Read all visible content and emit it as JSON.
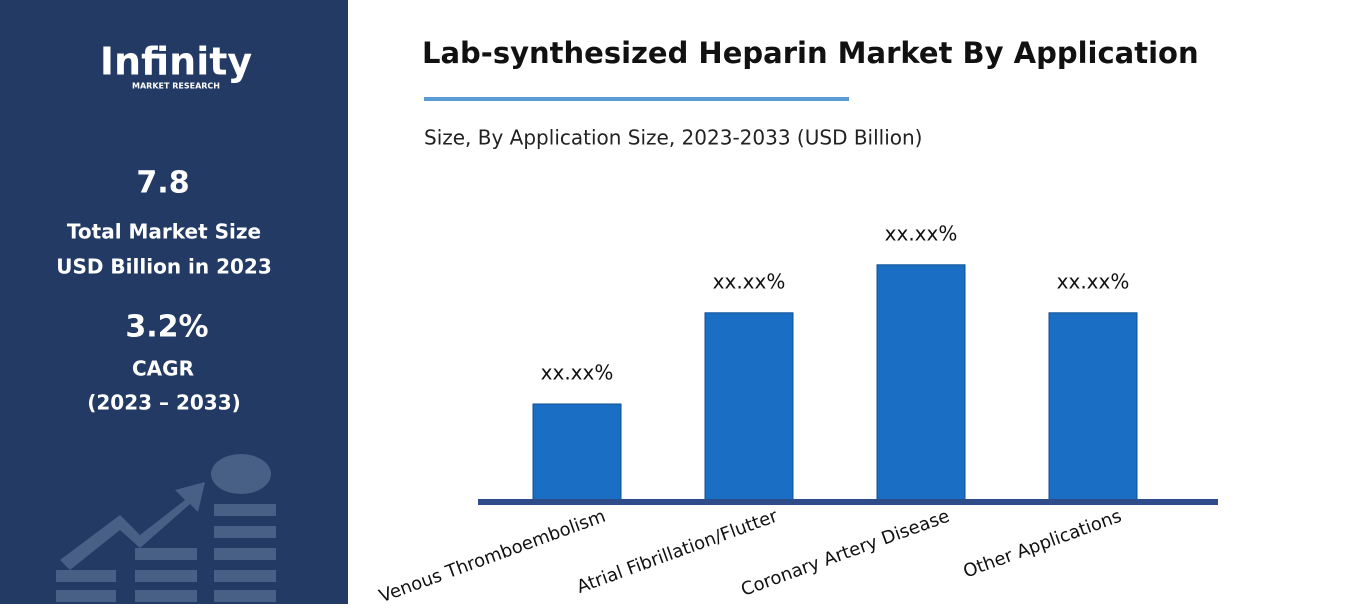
{
  "sidebar": {
    "logo": "Infinity",
    "logo_tagline": "MARKET RESEARCH",
    "market_size": "7.8",
    "market_size_label": [
      "Total Market Size",
      "USD Billion in 2023"
    ],
    "cagr": "3.2%",
    "cagr_label": [
      "CAGR",
      "(2023 – 2033)"
    ]
  },
  "chart_data": {
    "type": "bar",
    "title": "Lab-synthesized Heparin Market By Application",
    "subtitle": "Size, By Application Size, 2023-2033 (USD Billion)",
    "categories": [
      "Venous Thromboembolism",
      "Atrial Fibrillation/Flutter",
      "Coronary Artery Disease",
      "Other Applications"
    ],
    "values": [
      2.0,
      3.9,
      4.9,
      3.9
    ],
    "value_labels": [
      "xx.xx%",
      "xx.xx%",
      "xx.xx%",
      "xx.xx%"
    ],
    "color": "#1a6fc4",
    "ylim": [
      0,
      5
    ]
  }
}
